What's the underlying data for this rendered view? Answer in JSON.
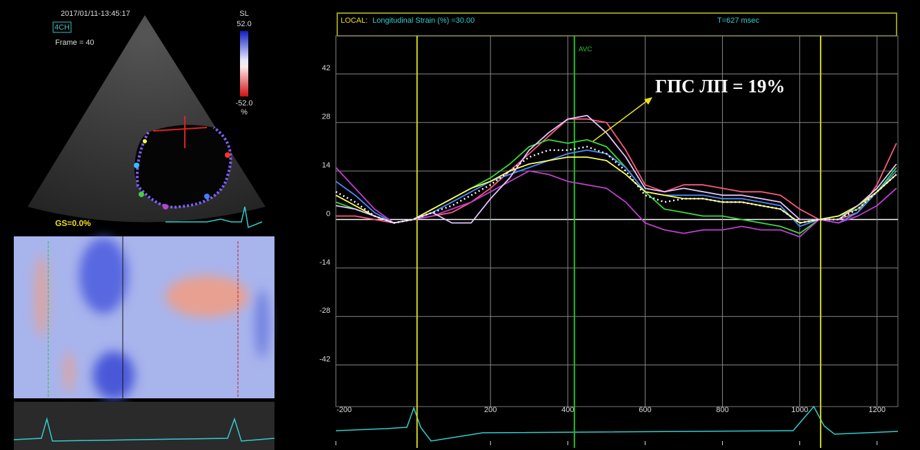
{
  "echo_panel": {
    "timestamp": "2017/01/11-13:45:17",
    "view": "4CH",
    "frame": "Frame = 40",
    "scale_label": "SL",
    "scale_max": "52.0",
    "scale_min": "-52.0",
    "scale_unit": "%",
    "global_strain": "GS=0.0%"
  },
  "chart_data": {
    "type": "line",
    "header": {
      "mode": "LOCAL:",
      "measure": "Longitudinal Strain (%) =30.00",
      "time": "T=627 msec"
    },
    "annotation": "ГПС ЛП = 19%",
    "markers": [
      {
        "x": 10,
        "color": "#d8d820"
      },
      {
        "x": 417,
        "label": "AVC",
        "color": "#22c022"
      },
      {
        "x": 1054,
        "color": "#d8d820"
      }
    ],
    "x": [
      -200,
      -150,
      -100,
      -50,
      0,
      50,
      100,
      150,
      200,
      250,
      300,
      350,
      400,
      450,
      500,
      550,
      600,
      650,
      700,
      750,
      800,
      850,
      900,
      950,
      1000,
      1050,
      1100,
      1150,
      1200,
      1250
    ],
    "series": [
      {
        "color": "#ff5a80",
        "values": [
          1,
          1,
          0,
          -1,
          0,
          1,
          2,
          5,
          9,
          14,
          19,
          24,
          29,
          29,
          28,
          20,
          10,
          8,
          10,
          10,
          9,
          8,
          8,
          7,
          3,
          0,
          0,
          2,
          10,
          22
        ]
      },
      {
        "color": "#3adc3a",
        "values": [
          5,
          3,
          1,
          -1,
          0,
          3,
          6,
          9,
          12,
          16,
          21,
          23,
          22,
          23,
          21,
          15,
          8,
          3,
          2,
          1,
          1,
          0,
          -1,
          -2,
          -4,
          0,
          1,
          3,
          8,
          15
        ]
      },
      {
        "color": "#4a8cff",
        "values": [
          11,
          7,
          2,
          -1,
          0,
          2,
          5,
          8,
          11,
          13,
          15,
          17,
          19,
          20,
          19,
          15,
          8,
          7,
          7,
          7,
          6,
          6,
          5,
          4,
          -2,
          0,
          -1,
          2,
          8,
          14
        ]
      },
      {
        "color": "#c040d0",
        "values": [
          15,
          9,
          3,
          -1,
          0,
          1,
          3,
          5,
          8,
          11,
          14,
          13,
          11,
          10,
          9,
          5,
          -1,
          -3,
          -4,
          -3,
          -3,
          -2,
          -3,
          -3,
          -5,
          0,
          -1,
          1,
          4,
          9
        ]
      },
      {
        "color": "#ffff60",
        "values": [
          7,
          4,
          1,
          -1,
          0,
          3,
          6,
          9,
          11,
          14,
          16,
          17,
          18,
          18,
          17,
          13,
          8,
          7,
          6,
          6,
          5,
          5,
          4,
          3,
          -1,
          0,
          1,
          4,
          8,
          13
        ]
      },
      {
        "color": "#e6c8ff",
        "values": [
          4,
          3,
          1,
          -1,
          0,
          2,
          -1,
          -1,
          6,
          12,
          20,
          25,
          29,
          30,
          25,
          18,
          9,
          8,
          9,
          8,
          7,
          7,
          6,
          5,
          0,
          0,
          0,
          4,
          9,
          16
        ]
      },
      {
        "color": "#ffffff",
        "dashed": true,
        "values": [
          8,
          5,
          1,
          -1,
          0,
          2,
          4,
          7,
          10,
          14,
          18,
          20,
          20,
          21,
          19,
          14,
          7,
          5,
          6,
          6,
          5,
          5,
          4,
          3,
          -1,
          0,
          0,
          3,
          8,
          13
        ]
      }
    ],
    "xlim": [
      -200,
      1254
    ],
    "ylim": [
      -54,
      53
    ],
    "xticks": [
      -200,
      200,
      400,
      600,
      800,
      1000,
      1200
    ],
    "yticks": [
      42,
      28,
      14,
      0,
      -14,
      -28,
      -42
    ],
    "grid": true
  }
}
